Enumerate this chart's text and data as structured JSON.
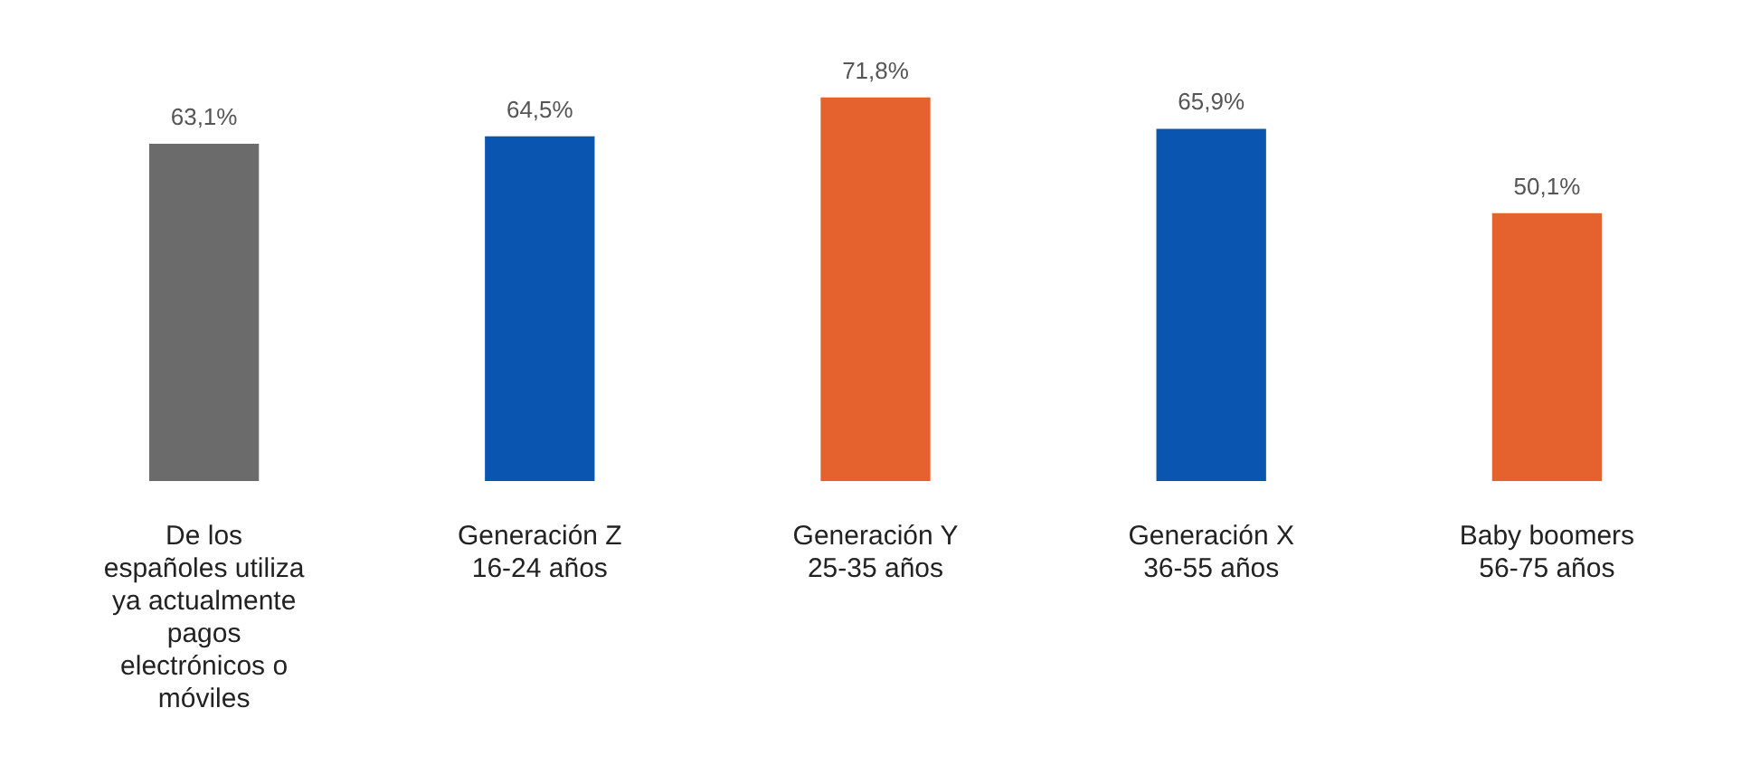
{
  "chart_data": {
    "type": "bar",
    "categories": [
      "De los españoles utiliza ya actualmente pagos electrónicos o móviles",
      "Generación Z 16-24 años",
      "Generación Y 25-35 años",
      "Generación X 36-55 años",
      "Baby boomers 56-75 años"
    ],
    "values": [
      63.1,
      64.5,
      71.8,
      65.9,
      50.1
    ],
    "colors": [
      "#6b6b6b",
      "#0a55b0",
      "#e5622e",
      "#0a55b0",
      "#e5622e"
    ],
    "value_labels": [
      "63,1%",
      "64,5%",
      "71,8%",
      "65,9%",
      "50,1%"
    ],
    "grid": false,
    "legend": false
  }
}
